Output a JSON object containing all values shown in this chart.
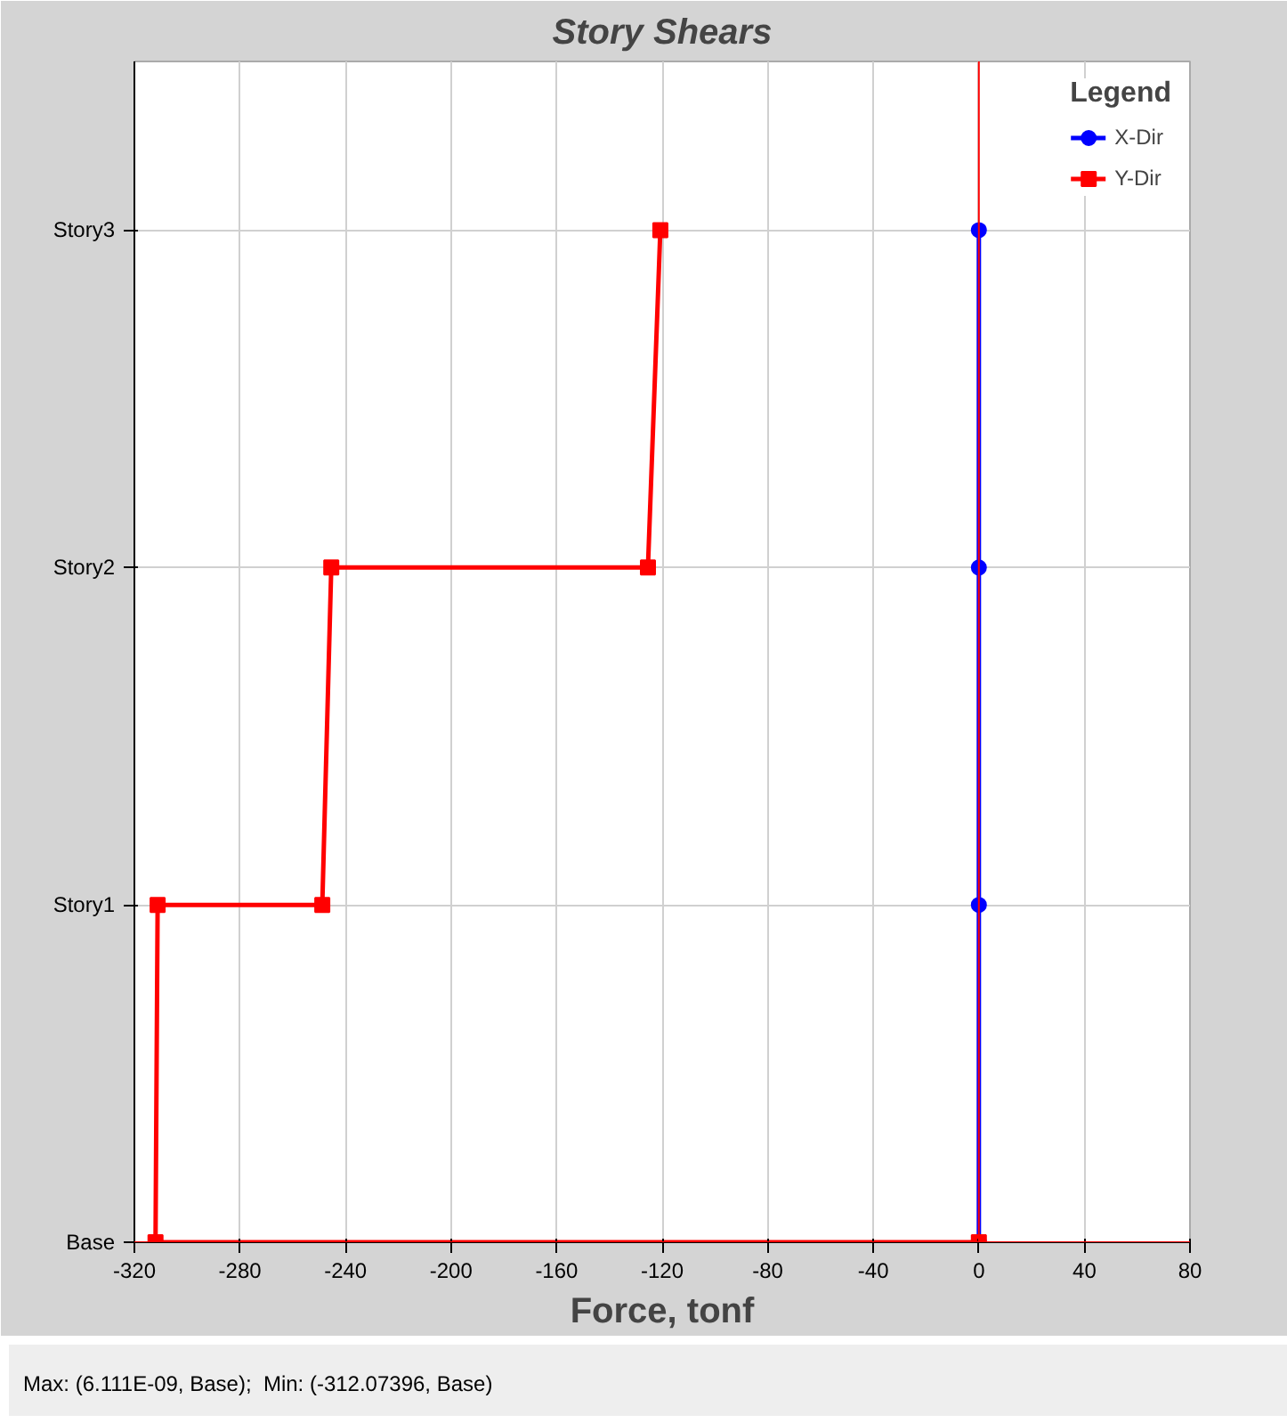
{
  "chart_data": {
    "type": "line",
    "title": "Story Shears",
    "xlabel": "Force, tonf",
    "legend_title": "Legend",
    "xlim": [
      -320,
      80
    ],
    "xticks": [
      -320,
      -280,
      -240,
      -200,
      -160,
      -120,
      -80,
      -40,
      0,
      40,
      80
    ],
    "orientation": "horizontal",
    "categories": [
      "Story3",
      "Story2",
      "Story1",
      "Base"
    ],
    "grid": true,
    "legend": "top right",
    "line_style": "solid",
    "series": [
      {
        "name": "X-Dir",
        "color": "#0000ff",
        "marker": "circle",
        "x": [
          "Base",
          "Story1",
          "Story2",
          "Story3"
        ],
        "values": [
          0,
          0,
          0,
          0
        ]
      },
      {
        "name": "Y-Dir",
        "color": "#ff0000",
        "marker": "square",
        "x": [
          "Story3",
          "Story2",
          "Story2",
          "Story1",
          "Story1",
          "Base",
          "Base"
        ],
        "values": [
          -120.7,
          -125.4,
          -245.4,
          -248.8,
          -311.2,
          -312,
          0
        ]
      }
    ],
    "ref_lines": [
      {
        "axis": "x",
        "value": 0,
        "label": null,
        "color": "#ff0000"
      },
      {
        "axis": "y",
        "value": "Base",
        "label": null,
        "color": "#ff0000"
      }
    ],
    "annotations": [
      "Max: (6.111E-09, Base);  Min: (-312.07396, Base)"
    ]
  }
}
